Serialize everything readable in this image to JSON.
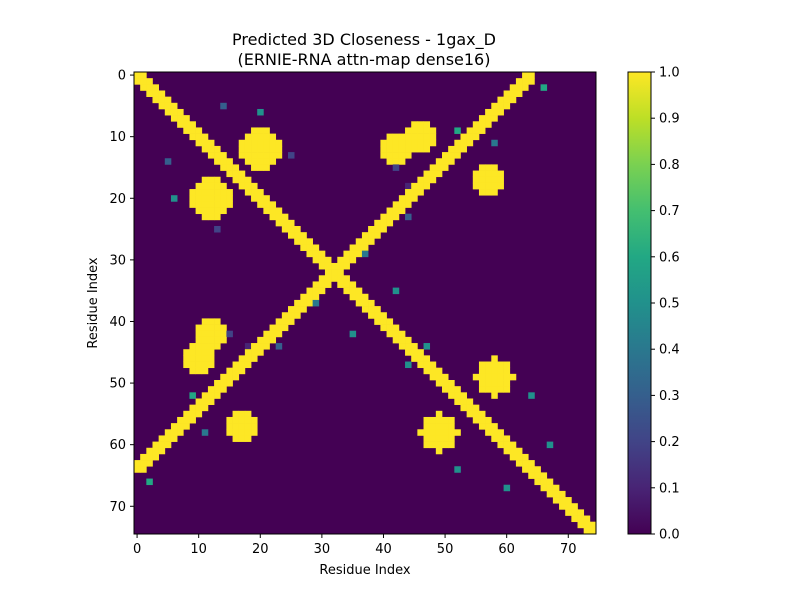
{
  "chart_data": {
    "type": "heatmap",
    "title": "Predicted 3D Closeness - 1gax_D",
    "subtitle": "(ERNIE-RNA attn-map dense16)",
    "xlabel": "Residue Index",
    "ylabel": "Residue Index",
    "n": 75,
    "x_ticks": [
      0,
      10,
      20,
      30,
      40,
      50,
      60,
      70
    ],
    "y_ticks": [
      0,
      10,
      20,
      30,
      40,
      50,
      60,
      70
    ],
    "colorbar": {
      "min": 0.0,
      "max": 1.0,
      "ticks": [
        "0.0",
        "0.1",
        "0.2",
        "0.3",
        "0.4",
        "0.5",
        "0.6",
        "0.7",
        "0.8",
        "0.9",
        "1.0"
      ],
      "colormap": "viridis"
    },
    "regions": [
      {
        "type": "diagonal_band",
        "half_width": 1.3,
        "value": 1.0
      },
      {
        "type": "anti_diagonal_band",
        "sum": 64,
        "from": 0,
        "to": 64,
        "half_width": 1.2,
        "value": 1.0
      },
      {
        "type": "anti_diagonal_band",
        "sum": 74,
        "from": 58,
        "to": 74,
        "half_width": 1.2,
        "value": 1.0
      },
      {
        "type": "blob",
        "center": [
          12,
          20
        ],
        "radius": 3.2,
        "value": 1.0
      },
      {
        "type": "blob",
        "center": [
          20,
          12
        ],
        "radius": 3.2,
        "value": 1.0
      },
      {
        "type": "blob",
        "center": [
          10,
          46
        ],
        "radius": 2.8,
        "value": 1.0
      },
      {
        "type": "blob",
        "center": [
          46,
          10
        ],
        "radius": 2.8,
        "value": 1.0
      },
      {
        "type": "blob",
        "center": [
          17,
          57
        ],
        "radius": 2.8,
        "value": 1.0
      },
      {
        "type": "blob",
        "center": [
          57,
          17
        ],
        "radius": 2.8,
        "value": 1.0
      },
      {
        "type": "blob",
        "center": [
          49,
          58
        ],
        "radius": 3.0,
        "value": 1.0
      },
      {
        "type": "blob",
        "center": [
          58,
          49
        ],
        "radius": 3.0,
        "value": 1.0
      },
      {
        "type": "blob",
        "center": [
          42,
          12
        ],
        "radius": 2.5,
        "value": 1.0
      },
      {
        "type": "blob",
        "center": [
          12,
          42
        ],
        "radius": 2.5,
        "value": 1.0
      }
    ],
    "sparse_points": [
      [
        5,
        14,
        0.3
      ],
      [
        14,
        5,
        0.3
      ],
      [
        6,
        20,
        0.5
      ],
      [
        20,
        6,
        0.5
      ],
      [
        15,
        42,
        0.2
      ],
      [
        42,
        15,
        0.2
      ],
      [
        11,
        58,
        0.4
      ],
      [
        58,
        11,
        0.4
      ],
      [
        2,
        66,
        0.6
      ],
      [
        66,
        2,
        0.6
      ],
      [
        44,
        47,
        0.5
      ],
      [
        47,
        44,
        0.5
      ],
      [
        9,
        52,
        0.6
      ],
      [
        52,
        9,
        0.6
      ],
      [
        23,
        44,
        0.3
      ],
      [
        44,
        23,
        0.3
      ],
      [
        29,
        37,
        0.4
      ],
      [
        37,
        29,
        0.4
      ],
      [
        35,
        42,
        0.5
      ],
      [
        42,
        35,
        0.5
      ],
      [
        28,
        36,
        0.6
      ],
      [
        36,
        28,
        0.6
      ],
      [
        60,
        67,
        0.5
      ],
      [
        67,
        60,
        0.5
      ],
      [
        52,
        64,
        0.5
      ],
      [
        64,
        52,
        0.5
      ],
      [
        5,
        60,
        0.6
      ],
      [
        60,
        5,
        0.6
      ],
      [
        13,
        25,
        0.2
      ],
      [
        25,
        13,
        0.2
      ],
      [
        18,
        44,
        0.1
      ],
      [
        44,
        18,
        0.1
      ]
    ]
  }
}
